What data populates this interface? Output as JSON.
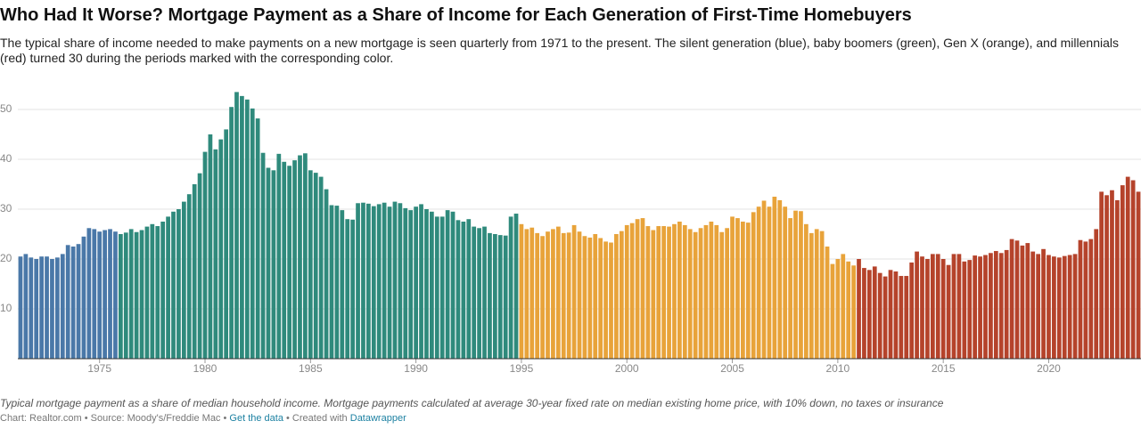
{
  "chart_data": {
    "type": "bar",
    "title": "Who Had It Worse? Mortgage Payment as a Share of Income for Each Generation of First-Time Homebuyers",
    "subtitle": "The typical share of income needed to make payments on a new mortgage is seen quarterly from 1971 to the present. The silent generation (blue), baby boomers (green), Gen X (orange), and millennials (red) turned 30 during the periods marked with the corresponding color.",
    "note": "Typical mortgage payment as a share of median household income. Mortgage payments calculated at average 30-year fixed rate on median existing home price, with 10% down, no taxes or insurance",
    "footer": {
      "source": "Chart: Realtor.com • Source: Moody's/Freddie Mac •",
      "link": "Get the data",
      "credit": "• Created with",
      "credit_link": "Datawrapper"
    },
    "ylim": [
      0,
      55
    ],
    "yticks": [
      10,
      20,
      30,
      40,
      50
    ],
    "grid": true,
    "series": [
      {
        "color": "#4a78a8",
        "categories": [
          null,
          null,
          null,
          null,
          null,
          null,
          null,
          null,
          null,
          null,
          null,
          null,
          null,
          null,
          null,
          "1975",
          null,
          null,
          null
        ],
        "values": [
          20.5,
          21,
          20.3,
          20,
          20.5,
          20.5,
          20,
          20.3,
          21,
          22.8,
          22.5,
          23,
          24.5,
          26.2,
          26,
          25.5,
          25.8,
          26,
          25.5
        ]
      },
      {
        "color": "#2f8a7c",
        "categories": [
          null,
          null,
          null,
          null,
          null,
          null,
          null,
          null,
          null,
          null,
          null,
          null,
          null,
          null,
          null,
          null,
          "1980",
          null,
          null,
          null,
          null,
          null,
          null,
          null,
          null,
          null,
          null,
          null,
          null,
          null,
          null,
          null,
          null,
          null,
          null,
          null,
          "1985",
          null,
          null,
          null,
          null,
          null,
          null,
          null,
          null,
          null,
          null,
          null,
          null,
          null,
          null,
          null,
          null,
          null,
          null,
          null,
          "1990",
          null,
          null,
          null,
          null,
          null,
          null,
          null,
          null,
          null,
          null,
          null,
          null,
          null,
          null,
          null,
          null,
          null,
          null,
          null
        ],
        "values": [
          25,
          25.3,
          26,
          25.4,
          25.8,
          26.5,
          27,
          26.6,
          27.5,
          28.5,
          29.5,
          30,
          31.5,
          33,
          35,
          37.2,
          41.5,
          45,
          42,
          44,
          46,
          50.5,
          53.5,
          52.7,
          52,
          50.2,
          48.2,
          41.3,
          38.3,
          37.8,
          41.1,
          39.5,
          38.7,
          39.8,
          40.8,
          41.2,
          37.8,
          37.3,
          36.5,
          34,
          30.8,
          30.7,
          29.8,
          28,
          27.9,
          31.2,
          31.3,
          31.1,
          30.6,
          31,
          31.3,
          30.5,
          31.5,
          31.2,
          30.2,
          29.8,
          30.5,
          31,
          30,
          29.5,
          28.5,
          28.5,
          29.8,
          29.5,
          27.8,
          27.5,
          28,
          26.5,
          26.2,
          26.5,
          25.2,
          25,
          24.8,
          24.7,
          28.5,
          29.1
        ]
      },
      {
        "color": "#e8a33a",
        "categories": [
          "1995",
          null,
          null,
          null,
          null,
          null,
          null,
          null,
          null,
          null,
          null,
          null,
          null,
          null,
          null,
          null,
          null,
          null,
          null,
          null,
          "2000",
          null,
          null,
          null,
          null,
          null,
          null,
          null,
          null,
          null,
          null,
          null,
          null,
          null,
          null,
          null,
          null,
          null,
          null,
          null,
          "2005",
          null,
          null,
          null,
          null,
          null,
          null,
          null,
          null,
          null,
          null,
          null,
          null,
          null,
          null,
          null,
          null,
          null,
          null,
          null,
          "2010",
          null,
          null,
          null
        ],
        "values": [
          27,
          26,
          26.3,
          25.2,
          24.6,
          25.5,
          26,
          26.5,
          25.2,
          25.3,
          26.8,
          25.5,
          24.6,
          24.3,
          25,
          24.2,
          23.5,
          23.3,
          25,
          25.6,
          26.8,
          27.2,
          28,
          28.2,
          26.6,
          25.8,
          26.6,
          26.6,
          26.5,
          27,
          27.5,
          26.8,
          26,
          25.4,
          26.2,
          26.8,
          27.5,
          26.8,
          25.4,
          26.2,
          28.5,
          28.2,
          27.5,
          27.3,
          29.4,
          30.5,
          31.7,
          30.5,
          32.5,
          31.8,
          30.5,
          28.2,
          29.7,
          29.6,
          27,
          25.2,
          26,
          25.6,
          22.5,
          19,
          20,
          21,
          19.5,
          18.7
        ]
      },
      {
        "color": "#b5432b",
        "categories": [
          null,
          null,
          null,
          null,
          null,
          null,
          null,
          null,
          null,
          null,
          null,
          null,
          null,
          null,
          null,
          null,
          "2015",
          null,
          null,
          null,
          null,
          null,
          null,
          null,
          null,
          null,
          null,
          null,
          null,
          null,
          null,
          null,
          null,
          null,
          null,
          null,
          "2020",
          null,
          null,
          null,
          null,
          null,
          null,
          null,
          null,
          null,
          null,
          null,
          null,
          null,
          null,
          null,
          null,
          null
        ],
        "values": [
          20,
          18.2,
          17.8,
          18.5,
          17.2,
          16.5,
          17.8,
          17.5,
          16.6,
          16.6,
          19.3,
          21.5,
          20.5,
          20,
          21,
          21,
          20,
          18.8,
          21,
          21,
          19.5,
          19.8,
          20.7,
          20.5,
          20.8,
          21.2,
          21.6,
          21.2,
          21.8,
          24,
          23.7,
          22.7,
          23.2,
          21.5,
          21,
          22,
          20.8,
          20.5,
          20.3,
          20.6,
          20.8,
          21,
          23.8,
          23.5,
          24,
          26,
          33.5,
          32.8,
          33.8,
          31.8,
          34.8,
          36.5,
          35.8,
          33.5
        ]
      }
    ]
  }
}
